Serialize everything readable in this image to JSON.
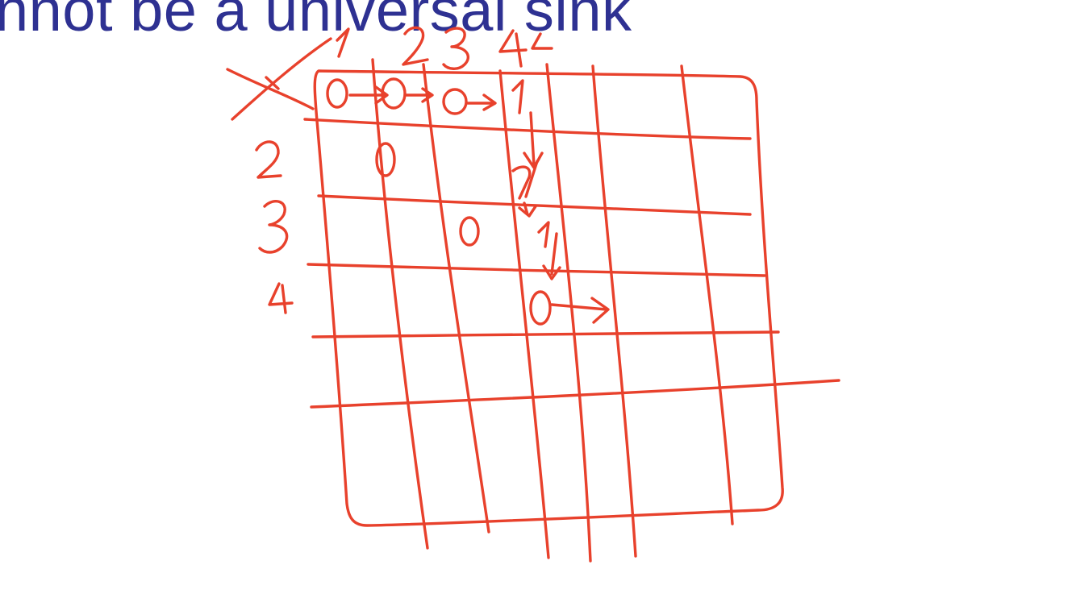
{
  "slide": {
    "title_visible_fragment": "nnot be a universal sink",
    "title_color": "#2e3192"
  },
  "ink": {
    "color": "#e8412c",
    "matrix": {
      "column_labels": [
        "1",
        "2",
        "3",
        "4"
      ],
      "row_labels": [
        "2",
        "3",
        "4"
      ],
      "cell_values": {
        "row1": [
          "0",
          "0",
          "0",
          "1"
        ],
        "row2_col2": "0",
        "row3_col3": "0",
        "col4": [
          "1",
          "1",
          "0"
        ]
      },
      "crossed_out_row_label": "1",
      "traversal": "right along row 1 to column 4, then down column 4 to row 4, then right"
    }
  }
}
